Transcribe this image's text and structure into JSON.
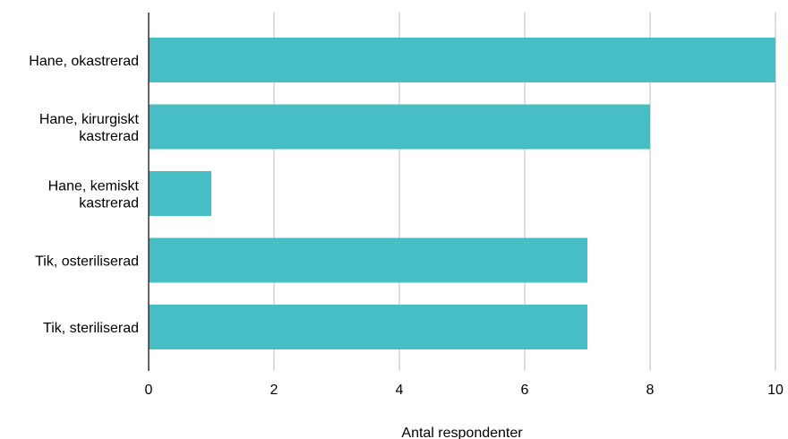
{
  "chart_data": {
    "type": "bar",
    "orientation": "horizontal",
    "categories": [
      "Hane, okastrerad",
      "Hane, kirurgiskt kastrerad",
      "Hane, kemiskt kastrerad",
      "Tik, osteriliserad",
      "Tik, steriliserad"
    ],
    "category_lines": [
      [
        "Hane, okastrerad"
      ],
      [
        "Hane, kirurgiskt",
        "kastrerad"
      ],
      [
        "Hane, kemiskt",
        "kastrerad"
      ],
      [
        "Tik, osteriliserad"
      ],
      [
        "Tik, steriliserad"
      ]
    ],
    "values": [
      10,
      8,
      1,
      7,
      7
    ],
    "xlabel": "Antal respondenter",
    "ylabel": "",
    "xlim": [
      0,
      10
    ],
    "xticks": [
      "0",
      "2",
      "4",
      "6",
      "8",
      "10"
    ],
    "grid": "vertical",
    "legend": "none",
    "bar_color": "#47bdc6",
    "grid_color": "#c8c8c8",
    "axis_color": "#333333"
  }
}
